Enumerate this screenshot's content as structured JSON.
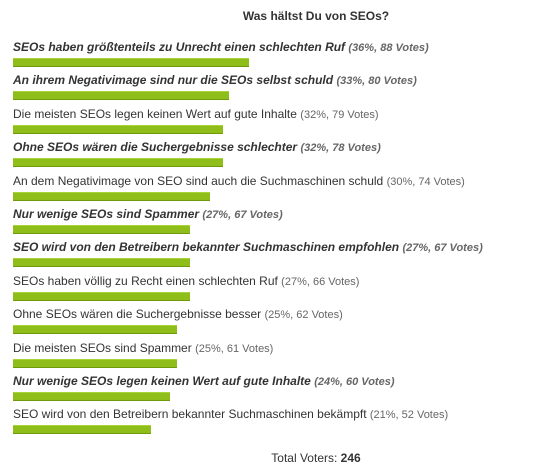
{
  "poll": {
    "question": "Was hältst Du von SEOs?",
    "total_label": "Total Voters:",
    "total_voters": "246",
    "bar_color": "#8fbd1a",
    "answers": [
      {
        "label": "SEOs haben größtenteils zu Unrecht einen schlechten Ruf",
        "meta": "(36%, 88 Votes)",
        "percent": 36,
        "top": true
      },
      {
        "label": "An ihrem Negativimage sind nur die SEOs selbst schuld",
        "meta": "(33%, 80 Votes)",
        "percent": 33,
        "top": true
      },
      {
        "label": "Die meisten SEOs legen keinen Wert auf gute Inhalte",
        "meta": "(32%, 79 Votes)",
        "percent": 32,
        "top": false
      },
      {
        "label": "Ohne SEOs wären die Suchergebnisse schlechter",
        "meta": "(32%, 78 Votes)",
        "percent": 32,
        "top": true
      },
      {
        "label": "An dem Negativimage von SEO sind auch die Suchmaschinen schuld",
        "meta": "(30%, 74 Votes)",
        "percent": 30,
        "top": false
      },
      {
        "label": "Nur wenige SEOs sind Spammer",
        "meta": "(27%, 67 Votes)",
        "percent": 27,
        "top": true
      },
      {
        "label": "SEO wird von den Betreibern bekannter Suchmaschinen empfohlen",
        "meta": "(27%, 67 Votes)",
        "percent": 27,
        "top": true
      },
      {
        "label": "SEOs haben völlig zu Recht einen schlechten Ruf",
        "meta": "(27%, 66 Votes)",
        "percent": 27,
        "top": false
      },
      {
        "label": "Ohne SEOs wären die Suchergebnisse besser",
        "meta": "(25%, 62 Votes)",
        "percent": 25,
        "top": false
      },
      {
        "label": "Die meisten SEOs sind Spammer",
        "meta": "(25%, 61 Votes)",
        "percent": 25,
        "top": false
      },
      {
        "label": "Nur wenige SEOs legen keinen Wert auf gute Inhalte",
        "meta": "(24%, 60 Votes)",
        "percent": 24,
        "top": true
      },
      {
        "label": "SEO wird von den Betreibern bekannter Suchmaschinen bekämpft",
        "meta": "(21%, 52 Votes)",
        "percent": 21,
        "top": false
      }
    ]
  }
}
